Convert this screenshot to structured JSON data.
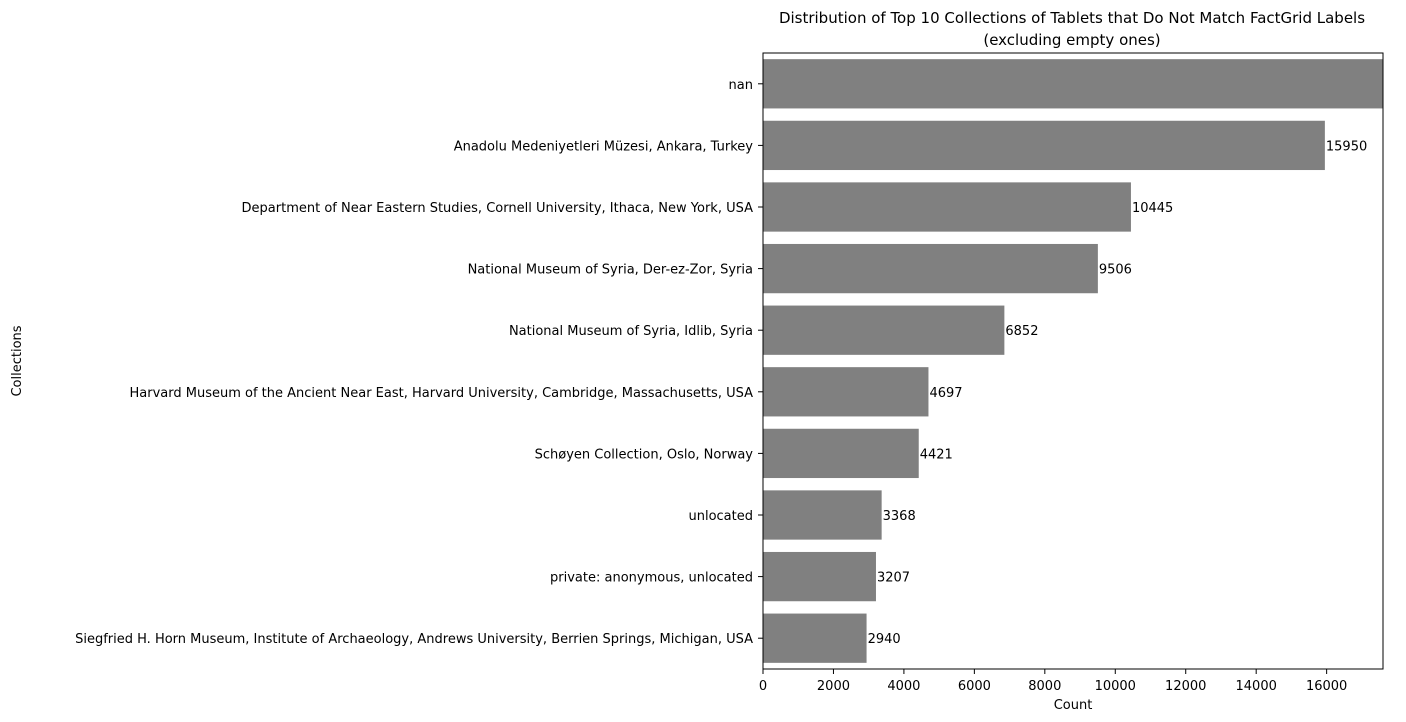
{
  "chart_data": {
    "type": "bar",
    "orientation": "horizontal",
    "title": "Distribution of Top 10 Collections of Tablets that Do Not Match FactGrid Labels",
    "subtitle": "(excluding empty ones)",
    "xlabel": "Count",
    "ylabel": "Collections",
    "categories": [
      "nan",
      "Anadolu Medeniyetleri Müzesi, Ankara, Turkey",
      "Department of Near Eastern Studies, Cornell University, Ithaca, New York, USA",
      "National Museum of Syria, Der-ez-Zor, Syria",
      "National Museum of Syria, Idlib, Syria",
      "Harvard Museum of the Ancient Near East, Harvard University, Cambridge, Massachusetts, USA",
      "Schøyen Collection, Oslo, Norway",
      "unlocated",
      "private: anonymous, unlocated",
      "Siegfried H. Horn Museum, Institute of Archaeology, Andrews University, Berrien Springs, Michigan, USA"
    ],
    "values": [
      17600,
      15950,
      10445,
      9506,
      6852,
      4697,
      4421,
      3368,
      3207,
      2940
    ],
    "data_labels": [
      "",
      "15950",
      "10445",
      "9506",
      "6852",
      "4697",
      "4421",
      "3368",
      "3207",
      "2940"
    ],
    "xlim": [
      0,
      17600
    ],
    "xticks": [
      0,
      2000,
      4000,
      6000,
      8000,
      10000,
      12000,
      14000,
      16000
    ],
    "bar_color": "#808080",
    "grid": false
  }
}
